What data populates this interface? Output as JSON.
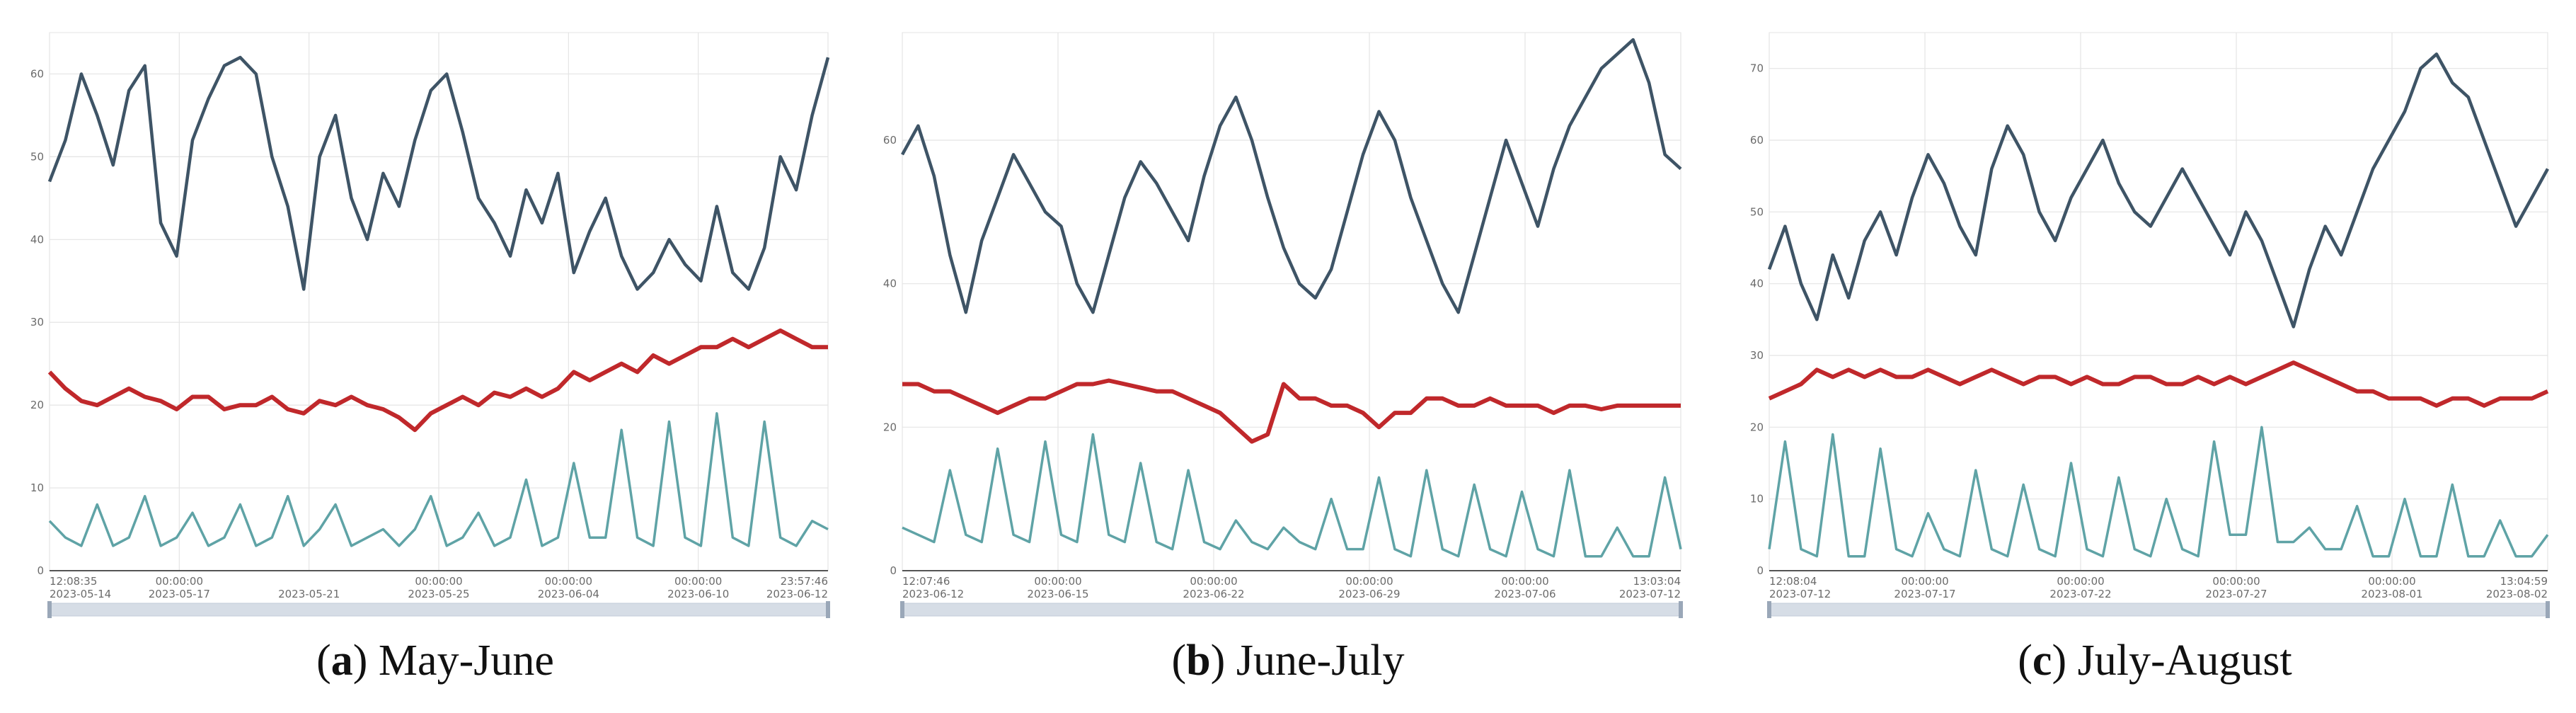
{
  "colors": {
    "series_high": "#3e5466",
    "series_mid": "#c0282b",
    "series_low": "#5fa3a6",
    "grid": "#e4e4e4",
    "axis": "#555555",
    "slider": "#d6dde6"
  },
  "captions": [
    {
      "letter": "a",
      "open": "(",
      "close": ")",
      "text": " May-June"
    },
    {
      "letter": "b",
      "open": "(",
      "close": ")",
      "text": " June-July"
    },
    {
      "letter": "c",
      "open": "(",
      "close": ")",
      "text": " July-August"
    }
  ],
  "chart_data": [
    {
      "type": "line",
      "title": "",
      "ylim": [
        0,
        65
      ],
      "y_ticks": [
        0,
        10,
        20,
        30,
        40,
        50,
        60
      ],
      "x_range": [
        "2023-05-14 12:08:35",
        "2023-06-12 23:57:46"
      ],
      "x_ticks": [
        {
          "date": "2023-05-14",
          "time": "12:08:35"
        },
        {
          "date": "2023-05-17",
          "time": "00:00:00"
        },
        {
          "date": "2023-05-21",
          "time": ""
        },
        {
          "date": "2023-05-25",
          "time": "00:00:00"
        },
        {
          "date": "2023-06-04",
          "time": "00:00:00"
        },
        {
          "date": "2023-06-10",
          "time": "00:00:00"
        },
        {
          "date": "2023-06-12",
          "time": "23:57:46"
        }
      ],
      "series": [
        {
          "key": "high",
          "values": [
            47,
            52,
            60,
            55,
            49,
            58,
            61,
            42,
            38,
            52,
            57,
            61,
            62,
            60,
            50,
            44,
            34,
            50,
            55,
            45,
            40,
            48,
            44,
            52,
            58,
            60,
            53,
            45,
            42,
            38,
            46,
            42,
            48,
            36,
            41,
            45,
            38,
            34,
            36,
            40,
            37,
            35,
            44,
            36,
            34,
            39,
            50,
            46,
            55,
            62
          ]
        },
        {
          "key": "mid",
          "values": [
            24,
            22,
            20.5,
            20,
            21,
            22,
            21,
            20.5,
            19.5,
            21,
            21,
            19.5,
            20,
            20,
            21,
            19.5,
            19,
            20.5,
            20,
            21,
            20,
            19.5,
            18.5,
            17,
            19,
            20,
            21,
            20,
            21.5,
            21,
            22,
            21,
            22,
            24,
            23,
            24,
            25,
            24,
            26,
            25,
            26,
            27,
            27,
            28,
            27,
            28,
            29,
            28,
            27,
            27
          ]
        },
        {
          "key": "low",
          "values": [
            6,
            4,
            3,
            8,
            3,
            4,
            9,
            3,
            4,
            7,
            3,
            4,
            8,
            3,
            4,
            9,
            3,
            5,
            8,
            3,
            4,
            5,
            3,
            5,
            9,
            3,
            4,
            7,
            3,
            4,
            11,
            3,
            4,
            13,
            4,
            4,
            17,
            4,
            3,
            18,
            4,
            3,
            19,
            4,
            3,
            18,
            4,
            3,
            6,
            5
          ]
        }
      ]
    },
    {
      "type": "line",
      "title": "",
      "ylim": [
        0,
        75
      ],
      "y_ticks": [
        0,
        20,
        40,
        60
      ],
      "x_range": [
        "2023-06-12 12:07:46",
        "2023-07-12 13:03:04"
      ],
      "x_ticks": [
        {
          "date": "2023-06-12",
          "time": "12:07:46"
        },
        {
          "date": "2023-06-15",
          "time": "00:00:00"
        },
        {
          "date": "2023-06-22",
          "time": "00:00:00"
        },
        {
          "date": "2023-06-29",
          "time": "00:00:00"
        },
        {
          "date": "2023-07-06",
          "time": "00:00:00"
        },
        {
          "date": "2023-07-12",
          "time": "13:03:04"
        }
      ],
      "series": [
        {
          "key": "high",
          "values": [
            58,
            62,
            55,
            44,
            36,
            46,
            52,
            58,
            54,
            50,
            48,
            40,
            36,
            44,
            52,
            57,
            54,
            50,
            46,
            55,
            62,
            66,
            60,
            52,
            45,
            40,
            38,
            42,
            50,
            58,
            64,
            60,
            52,
            46,
            40,
            36,
            44,
            52,
            60,
            54,
            48,
            56,
            62,
            66,
            70,
            72,
            74,
            68,
            58,
            56
          ]
        },
        {
          "key": "mid",
          "values": [
            26,
            26,
            25,
            25,
            24,
            23,
            22,
            23,
            24,
            24,
            25,
            26,
            26,
            26.5,
            26,
            25.5,
            25,
            25,
            24,
            23,
            22,
            20,
            18,
            19,
            26,
            24,
            24,
            23,
            23,
            22,
            20,
            22,
            22,
            24,
            24,
            23,
            23,
            24,
            23,
            23,
            23,
            22,
            23,
            23,
            22.5,
            23,
            23,
            23,
            23,
            23
          ]
        },
        {
          "key": "low",
          "values": [
            6,
            5,
            4,
            14,
            5,
            4,
            17,
            5,
            4,
            18,
            5,
            4,
            19,
            5,
            4,
            15,
            4,
            3,
            14,
            4,
            3,
            7,
            4,
            3,
            6,
            4,
            3,
            10,
            3,
            3,
            13,
            3,
            2,
            14,
            3,
            2,
            12,
            3,
            2,
            11,
            3,
            2,
            14,
            2,
            2,
            6,
            2,
            2,
            13,
            3
          ]
        }
      ]
    },
    {
      "type": "line",
      "title": "",
      "ylim": [
        0,
        75
      ],
      "y_ticks": [
        0,
        10,
        20,
        30,
        40,
        50,
        60,
        70
      ],
      "x_range": [
        "2023-07-12 12:08:04",
        "2023-08-02 13:04:59"
      ],
      "x_ticks": [
        {
          "date": "2023-07-12",
          "time": "12:08:04"
        },
        {
          "date": "2023-07-17",
          "time": "00:00:00"
        },
        {
          "date": "2023-07-22",
          "time": "00:00:00"
        },
        {
          "date": "2023-07-27",
          "time": "00:00:00"
        },
        {
          "date": "2023-08-01",
          "time": "00:00:00"
        },
        {
          "date": "2023-08-02",
          "time": "13:04:59"
        }
      ],
      "series": [
        {
          "key": "high",
          "values": [
            42,
            48,
            40,
            35,
            44,
            38,
            46,
            50,
            44,
            52,
            58,
            54,
            48,
            44,
            56,
            62,
            58,
            50,
            46,
            52,
            56,
            60,
            54,
            50,
            48,
            52,
            56,
            52,
            48,
            44,
            50,
            46,
            40,
            34,
            42,
            48,
            44,
            50,
            56,
            60,
            64,
            70,
            72,
            68,
            66,
            60,
            54,
            48,
            52,
            56
          ]
        },
        {
          "key": "mid",
          "values": [
            24,
            25,
            26,
            28,
            27,
            28,
            27,
            28,
            27,
            27,
            28,
            27,
            26,
            27,
            28,
            27,
            26,
            27,
            27,
            26,
            27,
            26,
            26,
            27,
            27,
            26,
            26,
            27,
            26,
            27,
            26,
            27,
            28,
            29,
            28,
            27,
            26,
            25,
            25,
            24,
            24,
            24,
            23,
            24,
            24,
            23,
            24,
            24,
            24,
            25
          ]
        },
        {
          "key": "low",
          "values": [
            3,
            18,
            3,
            2,
            19,
            2,
            2,
            17,
            3,
            2,
            8,
            3,
            2,
            14,
            3,
            2,
            12,
            3,
            2,
            15,
            3,
            2,
            13,
            3,
            2,
            10,
            3,
            2,
            18,
            5,
            5,
            20,
            4,
            4,
            6,
            3,
            3,
            9,
            2,
            2,
            10,
            2,
            2,
            12,
            2,
            2,
            7,
            2,
            2,
            5
          ]
        }
      ]
    }
  ]
}
